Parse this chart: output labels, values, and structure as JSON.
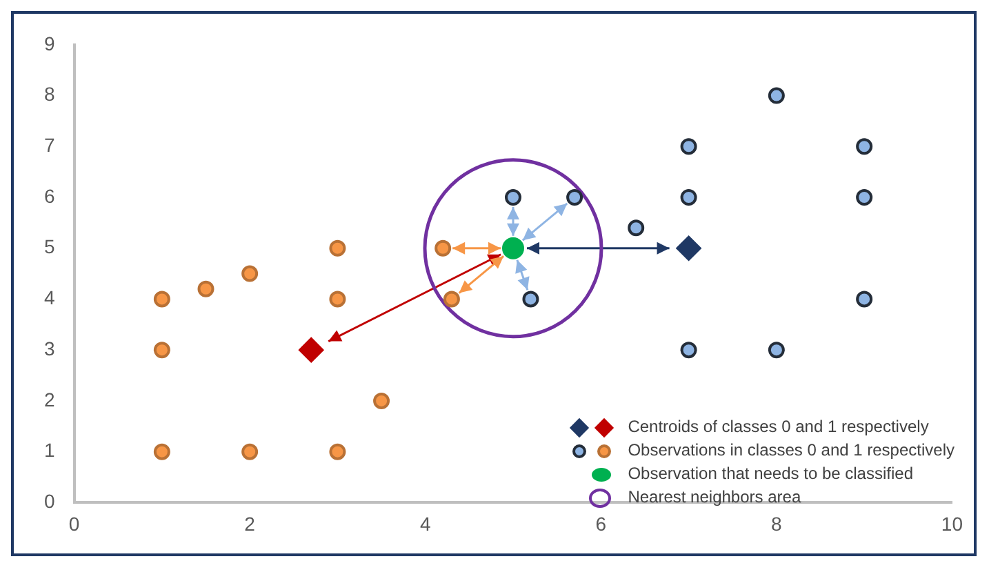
{
  "chart_data": {
    "type": "scatter",
    "xlim": [
      0,
      10
    ],
    "xticks": [
      0,
      2,
      4,
      6,
      8,
      10
    ],
    "ylim": [
      0,
      9
    ],
    "yticks": [
      0,
      1,
      2,
      3,
      4,
      5,
      6,
      7,
      8,
      9
    ],
    "grid": false,
    "legend": "bottom right",
    "series": [
      {
        "marker": "diamond",
        "color": "#1f3864",
        "x": [
          7
        ],
        "values": [
          5
        ]
      },
      {
        "name": "Centroids of classes 0 and 1 respectively",
        "marker": "diamond",
        "color": "#c00000",
        "x": [
          2.7
        ],
        "values": [
          3
        ]
      },
      {
        "marker": "circle",
        "color": "#8eb4e3",
        "x": [
          5,
          5.7,
          6.4,
          5.2,
          7,
          7,
          8,
          9,
          9,
          9,
          7,
          8
        ],
        "values": [
          6,
          6,
          5.4,
          4,
          7,
          6,
          8,
          7,
          6,
          4,
          3,
          3
        ]
      },
      {
        "name": "Observations in classes 0 and 1 respectively",
        "marker": "circle",
        "color": "#f79646",
        "x": [
          1,
          1.5,
          2,
          3,
          3,
          1,
          3.5,
          1,
          2,
          3,
          4.2,
          4.3
        ],
        "values": [
          4,
          4.2,
          4.5,
          5,
          4,
          3,
          2,
          1,
          1,
          1,
          5,
          4
        ]
      },
      {
        "name": "Observation that needs to be classified",
        "marker": "circle",
        "color": "#00b050",
        "x": [
          5
        ],
        "values": [
          5
        ]
      },
      {
        "name": "Nearest neighbors area",
        "marker": "circle",
        "color": "#7030a0",
        "x": [
          5
        ],
        "values": [
          5
        ]
      }
    ]
  }
}
